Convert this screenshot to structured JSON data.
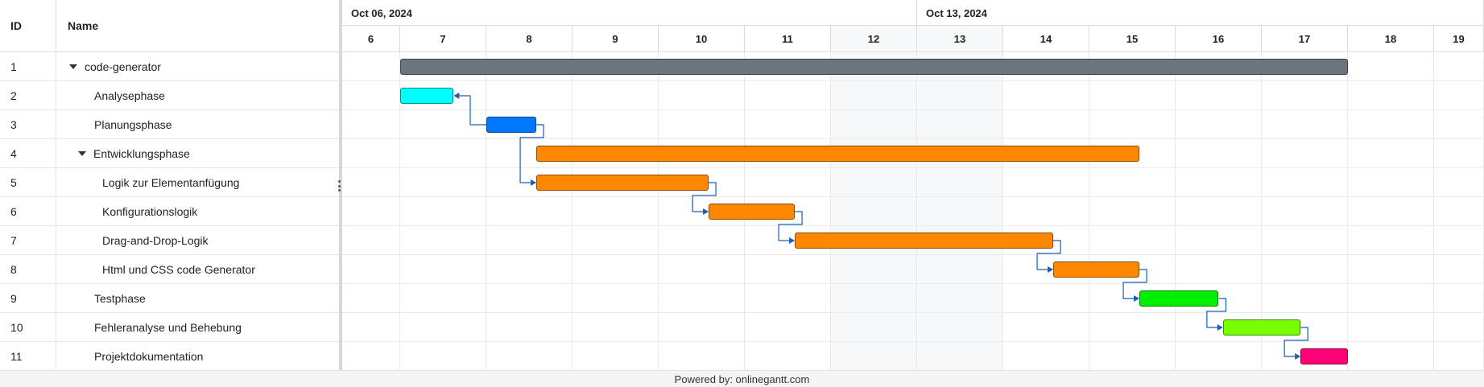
{
  "grid": {
    "id_header": "ID",
    "name_header": "Name",
    "rows": [
      {
        "id": "1",
        "name": "code-generator",
        "level": 0,
        "group": true
      },
      {
        "id": "2",
        "name": "Analysephase",
        "level": 1,
        "group": false
      },
      {
        "id": "3",
        "name": "Planungsphase",
        "level": 1,
        "group": false
      },
      {
        "id": "4",
        "name": "Entwicklungsphase",
        "level": 1,
        "group": true
      },
      {
        "id": "5",
        "name": "Logik zur Elementanfügung",
        "level": 2,
        "group": false
      },
      {
        "id": "6",
        "name": "Konfigurationslogik",
        "level": 2,
        "group": false
      },
      {
        "id": "7",
        "name": "Drag-and-Drop-Logik",
        "level": 2,
        "group": false
      },
      {
        "id": "8",
        "name": "Html und CSS code Generator",
        "level": 2,
        "group": false
      },
      {
        "id": "9",
        "name": "Testphase",
        "level": 1,
        "group": false
      },
      {
        "id": "10",
        "name": "Fehleranalyse und Behebung",
        "level": 1,
        "group": false
      },
      {
        "id": "11",
        "name": "Projektdokumentation",
        "level": 1,
        "group": false
      }
    ]
  },
  "timeline": {
    "months": [
      {
        "label": "Oct 06, 2024",
        "start_day": "6",
        "end_day": "12"
      },
      {
        "label": "Oct 13, 2024",
        "start_day": "13",
        "end_day": "19"
      }
    ],
    "days": [
      "6",
      "7",
      "8",
      "9",
      "10",
      "11",
      "12",
      "13",
      "14",
      "15",
      "16",
      "17",
      "18",
      "19"
    ],
    "weekend_days": [
      "12",
      "13"
    ]
  },
  "tasks": [
    {
      "id": "1",
      "start": 7.0,
      "end": 18.0,
      "color": "#6c757d"
    },
    {
      "id": "2",
      "start": 7.0,
      "end": 7.62,
      "color": "#00ffff"
    },
    {
      "id": "3",
      "start": 8.0,
      "end": 8.58,
      "color": "#0077ff"
    },
    {
      "id": "4",
      "start": 8.58,
      "end": 15.58,
      "color": "#ff8800"
    },
    {
      "id": "5",
      "start": 8.58,
      "end": 10.58,
      "color": "#ff8800"
    },
    {
      "id": "6",
      "start": 10.58,
      "end": 11.58,
      "color": "#ff8800"
    },
    {
      "id": "7",
      "start": 11.58,
      "end": 14.58,
      "color": "#ff8800"
    },
    {
      "id": "8",
      "start": 14.58,
      "end": 15.58,
      "color": "#ff8800"
    },
    {
      "id": "9",
      "start": 15.58,
      "end": 16.5,
      "color": "#00ee00"
    },
    {
      "id": "10",
      "start": 16.55,
      "end": 17.45,
      "color": "#77ff00"
    },
    {
      "id": "11",
      "start": 17.45,
      "end": 18.0,
      "color": "#ff0077"
    }
  ],
  "links": [
    {
      "from": "3",
      "to": "2"
    },
    {
      "from": "3",
      "to": "5"
    },
    {
      "from": "5",
      "to": "6"
    },
    {
      "from": "6",
      "to": "7"
    },
    {
      "from": "7",
      "to": "8"
    },
    {
      "from": "8",
      "to": "9"
    },
    {
      "from": "9",
      "to": "10"
    },
    {
      "from": "10",
      "to": "11"
    }
  ],
  "link_color": "#1a5fb4",
  "footer": {
    "text": "Powered by: onlinegantt.com"
  }
}
